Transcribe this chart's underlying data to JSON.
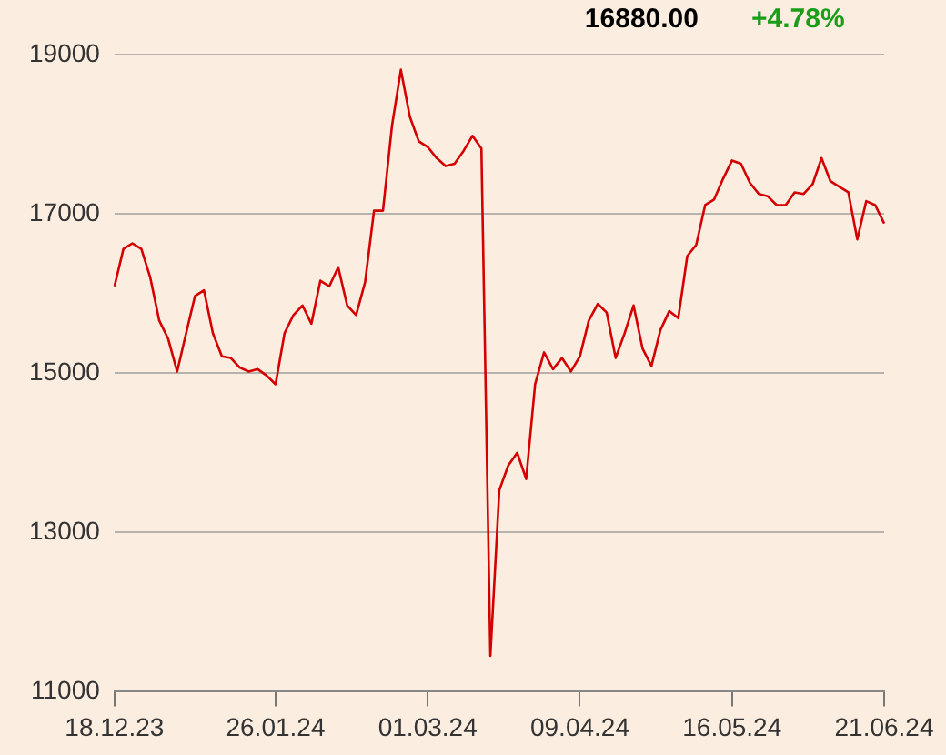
{
  "chart_data": {
    "type": "line",
    "annotations": [
      "16880.00",
      "+4.78%"
    ],
    "categories": [
      "18.12.23",
      null,
      null,
      null,
      null,
      null,
      null,
      null,
      null,
      null,
      null,
      null,
      null,
      null,
      null,
      null,
      null,
      null,
      "26.01.24",
      null,
      null,
      null,
      null,
      null,
      null,
      null,
      null,
      null,
      null,
      null,
      null,
      null,
      null,
      null,
      null,
      "01.03.24",
      null,
      null,
      null,
      null,
      null,
      null,
      null,
      null,
      null,
      null,
      null,
      null,
      null,
      null,
      null,
      null,
      "09.04.24",
      null,
      null,
      null,
      null,
      null,
      null,
      null,
      null,
      null,
      null,
      null,
      null,
      null,
      null,
      null,
      null,
      "16.05.24",
      null,
      null,
      null,
      null,
      null,
      null,
      null,
      null,
      null,
      null,
      null,
      null,
      null,
      null,
      null,
      null,
      "21.06.24"
    ],
    "series": [
      {
        "type": "line",
        "color": "#d40000",
        "values": [
          16090,
          16560,
          16630,
          16560,
          16200,
          15660,
          15430,
          15020,
          15500,
          15970,
          16040,
          15500,
          15210,
          15190,
          15070,
          15020,
          15050,
          14970,
          14860,
          15500,
          15730,
          15850,
          15620,
          16160,
          16090,
          16330,
          15850,
          15730,
          16140,
          17040,
          17040,
          18100,
          18810,
          18220,
          17910,
          17840,
          17700,
          17600,
          17630,
          17790,
          17980,
          17820,
          11450,
          13530,
          13840,
          14000,
          13670,
          14860,
          15260,
          15050,
          15190,
          15020,
          15210,
          15660,
          15870,
          15760,
          15190,
          15500,
          15850,
          15310,
          15090,
          15540,
          15780,
          15690,
          16470,
          16610,
          17110,
          17180,
          17440,
          17670,
          17630,
          17390,
          17250,
          17220,
          17110,
          17110,
          17270,
          17250,
          17370,
          17700,
          17410,
          17340,
          17270,
          16680,
          17160,
          17110,
          16880
        ]
      }
    ],
    "ylim": [
      11000,
      19000
    ],
    "yticks": [
      11000,
      13000,
      15000,
      17000,
      19000
    ],
    "grid": "y",
    "legend": false,
    "marker": "none",
    "line_style": "solid"
  }
}
